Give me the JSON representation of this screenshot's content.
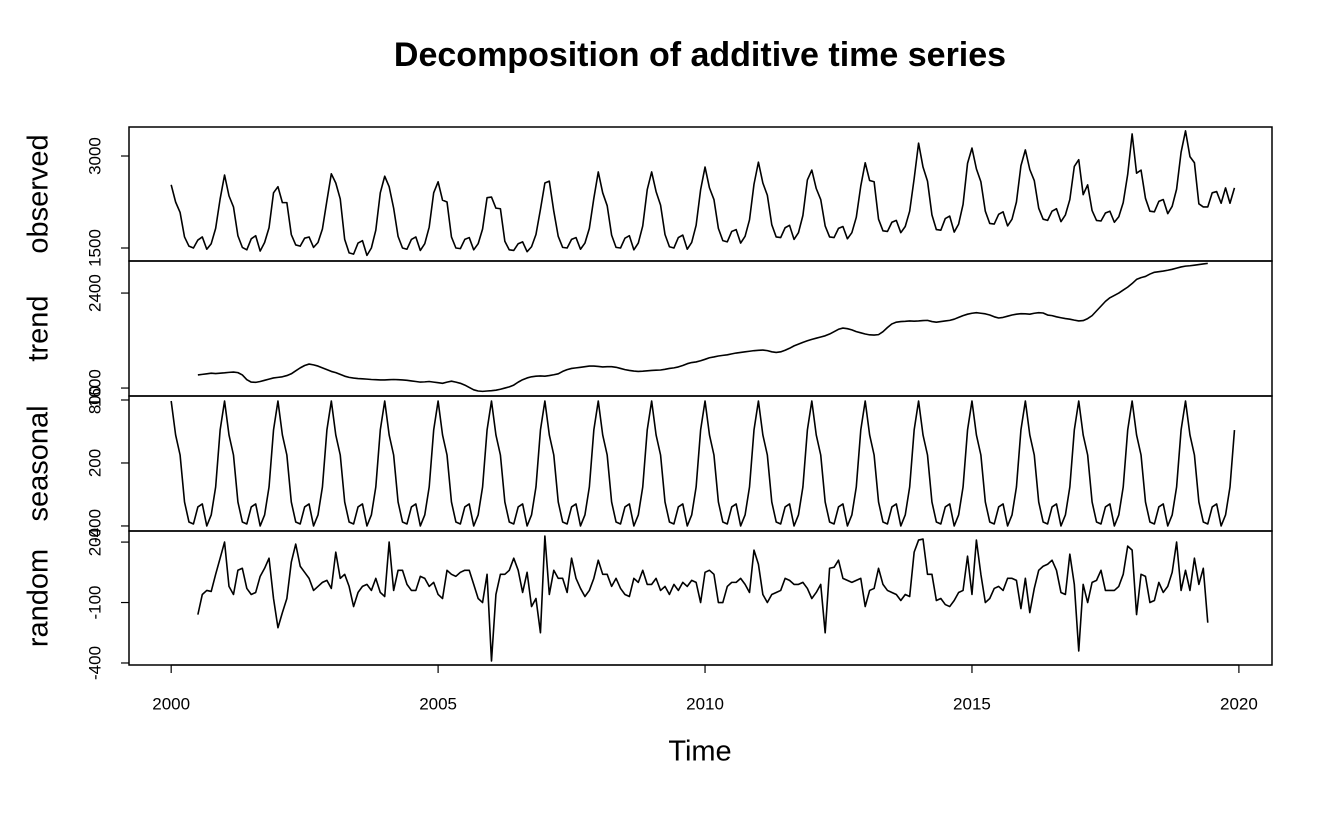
{
  "chart_data": {
    "type": "line",
    "title": "Decomposition of additive time series",
    "xlabel": "Time",
    "xlim": [
      1999.21,
      2020.62
    ],
    "xticks": [
      2000,
      2005,
      2010,
      2015,
      2020
    ],
    "x": [
      2000,
      2000.083,
      2000.167,
      2000.25,
      2000.333,
      2000.417,
      2000.5,
      2000.583,
      2000.667,
      2000.75,
      2000.833,
      2000.917,
      2001,
      2001.083,
      2001.167,
      2001.25,
      2001.333,
      2001.417,
      2001.5,
      2001.583,
      2001.667,
      2001.75,
      2001.833,
      2001.917,
      2002,
      2002.083,
      2002.167,
      2002.25,
      2002.333,
      2002.417,
      2002.5,
      2002.583,
      2002.667,
      2002.75,
      2002.833,
      2002.917,
      2003,
      2003.083,
      2003.167,
      2003.25,
      2003.333,
      2003.417,
      2003.5,
      2003.583,
      2003.667,
      2003.75,
      2003.833,
      2003.917,
      2004,
      2004.083,
      2004.167,
      2004.25,
      2004.333,
      2004.417,
      2004.5,
      2004.583,
      2004.667,
      2004.75,
      2004.833,
      2004.917,
      2005,
      2005.083,
      2005.167,
      2005.25,
      2005.333,
      2005.417,
      2005.5,
      2005.583,
      2005.667,
      2005.75,
      2005.833,
      2005.917,
      2006,
      2006.083,
      2006.167,
      2006.25,
      2006.333,
      2006.417,
      2006.5,
      2006.583,
      2006.667,
      2006.75,
      2006.833,
      2006.917,
      2007,
      2007.083,
      2007.167,
      2007.25,
      2007.333,
      2007.417,
      2007.5,
      2007.583,
      2007.667,
      2007.75,
      2007.833,
      2007.917,
      2008,
      2008.083,
      2008.167,
      2008.25,
      2008.333,
      2008.417,
      2008.5,
      2008.583,
      2008.667,
      2008.75,
      2008.833,
      2008.917,
      2009,
      2009.083,
      2009.167,
      2009.25,
      2009.333,
      2009.417,
      2009.5,
      2009.583,
      2009.667,
      2009.75,
      2009.833,
      2009.917,
      2010,
      2010.083,
      2010.167,
      2010.25,
      2010.333,
      2010.417,
      2010.5,
      2010.583,
      2010.667,
      2010.75,
      2010.833,
      2010.917,
      2011,
      2011.083,
      2011.167,
      2011.25,
      2011.333,
      2011.417,
      2011.5,
      2011.583,
      2011.667,
      2011.75,
      2011.833,
      2011.917,
      2012,
      2012.083,
      2012.167,
      2012.25,
      2012.333,
      2012.417,
      2012.5,
      2012.583,
      2012.667,
      2012.75,
      2012.833,
      2012.917,
      2013,
      2013.083,
      2013.167,
      2013.25,
      2013.333,
      2013.417,
      2013.5,
      2013.583,
      2013.667,
      2013.75,
      2013.833,
      2013.917,
      2014,
      2014.083,
      2014.167,
      2014.25,
      2014.333,
      2014.417,
      2014.5,
      2014.583,
      2014.667,
      2014.75,
      2014.833,
      2014.917,
      2015,
      2015.083,
      2015.167,
      2015.25,
      2015.333,
      2015.417,
      2015.5,
      2015.583,
      2015.667,
      2015.75,
      2015.833,
      2015.917,
      2016,
      2016.083,
      2016.167,
      2016.25,
      2016.333,
      2016.417,
      2016.5,
      2016.583,
      2016.667,
      2016.75,
      2016.833,
      2016.917,
      2017,
      2017.083,
      2017.167,
      2017.25,
      2017.333,
      2017.417,
      2017.5,
      2017.583,
      2017.667,
      2017.75,
      2017.833,
      2017.917,
      2018,
      2018.083,
      2018.167,
      2018.25,
      2018.333,
      2018.417,
      2018.5,
      2018.583,
      2018.667,
      2018.75,
      2018.833,
      2018.917,
      2019,
      2019.083,
      2019.167,
      2019.25,
      2019.333,
      2019.417,
      2019.5,
      2019.583,
      2019.667,
      2019.75,
      2019.833,
      2019.917
    ],
    "panels": [
      {
        "ylabel": "observed",
        "color": "#000000",
        "ylim": [
          1288,
          3473
        ],
        "yticks": [
          1500,
          3000
        ],
        "values": [
          2530,
          2250,
          2080,
          1680,
          1530,
          1500,
          1630,
          1680,
          1480,
          1570,
          1820,
          2300,
          2690,
          2350,
          2170,
          1700,
          1510,
          1470,
          1650,
          1700,
          1450,
          1590,
          1830,
          2400,
          2500,
          2240,
          2240,
          1720,
          1550,
          1530,
          1660,
          1680,
          1510,
          1590,
          1810,
          2270,
          2710,
          2560,
          2300,
          1640,
          1420,
          1400,
          1580,
          1620,
          1380,
          1500,
          1790,
          2400,
          2670,
          2500,
          2150,
          1690,
          1500,
          1480,
          1640,
          1680,
          1460,
          1570,
          1840,
          2400,
          2580,
          2280,
          2250,
          1680,
          1500,
          1490,
          1640,
          1670,
          1470,
          1570,
          1810,
          2320,
          2330,
          2150,
          2140,
          1610,
          1470,
          1460,
          1570,
          1600,
          1440,
          1520,
          1720,
          2130,
          2560,
          2590,
          2100,
          1690,
          1510,
          1500,
          1640,
          1670,
          1480,
          1580,
          1820,
          2310,
          2740,
          2400,
          2190,
          1710,
          1510,
          1500,
          1660,
          1700,
          1470,
          1580,
          1860,
          2450,
          2740,
          2420,
          2200,
          1720,
          1520,
          1500,
          1670,
          1710,
          1480,
          1590,
          1870,
          2450,
          2820,
          2480,
          2290,
          1820,
          1620,
          1600,
          1770,
          1800,
          1580,
          1690,
          1960,
          2540,
          2900,
          2560,
          2360,
          1880,
          1680,
          1670,
          1830,
          1870,
          1640,
          1750,
          2030,
          2610,
          2770,
          2470,
          2290,
          1860,
          1680,
          1670,
          1820,
          1850,
          1650,
          1750,
          2000,
          2510,
          2890,
          2600,
          2580,
          1970,
          1780,
          1770,
          1920,
          1950,
          1750,
          1850,
          2100,
          2630,
          3210,
          2820,
          2590,
          2040,
          1800,
          1790,
          1980,
          2020,
          1760,
          1890,
          2210,
          2880,
          3130,
          2790,
          2580,
          2100,
          1900,
          1890,
          2050,
          2090,
          1860,
          1970,
          2250,
          2840,
          3100,
          2780,
          2600,
          2150,
          1970,
          1950,
          2100,
          2140,
          1930,
          2040,
          2290,
          2830,
          2940,
          2370,
          2530,
          2110,
          1950,
          1940,
          2070,
          2100,
          1920,
          2010,
          2240,
          2700,
          3360,
          2720,
          2770,
          2310,
          2100,
          2090,
          2260,
          2290,
          2060,
          2180,
          2460,
          3060,
          3410,
          2990,
          2890,
          2220,
          2170,
          2170,
          2400,
          2420,
          2230,
          2480,
          2230,
          2480
        ]
      },
      {
        "ylabel": "trend",
        "color": "#000000",
        "ylim": [
          1533,
          2670
        ],
        "yticks": [
          1600,
          2400
        ],
        "values": [
          null,
          null,
          null,
          null,
          null,
          null,
          1710,
          1715,
          1720,
          1725,
          1722,
          1725,
          1728,
          1732,
          1735,
          1730,
          1710,
          1670,
          1650,
          1648,
          1655,
          1665,
          1675,
          1685,
          1690,
          1695,
          1705,
          1720,
          1745,
          1770,
          1790,
          1802,
          1795,
          1785,
          1770,
          1755,
          1740,
          1730,
          1715,
          1700,
          1690,
          1684,
          1680,
          1678,
          1675,
          1672,
          1670,
          1668,
          1668,
          1670,
          1672,
          1670,
          1668,
          1665,
          1660,
          1655,
          1650,
          1652,
          1655,
          1650,
          1645,
          1640,
          1650,
          1658,
          1650,
          1640,
          1625,
          1605,
          1585,
          1575,
          1572,
          1575,
          1578,
          1582,
          1590,
          1600,
          1610,
          1625,
          1650,
          1670,
          1685,
          1695,
          1700,
          1702,
          1700,
          1705,
          1712,
          1720,
          1740,
          1755,
          1765,
          1770,
          1775,
          1780,
          1785,
          1785,
          1782,
          1778,
          1780,
          1780,
          1775,
          1765,
          1755,
          1748,
          1743,
          1740,
          1742,
          1745,
          1748,
          1750,
          1752,
          1758,
          1765,
          1770,
          1778,
          1790,
          1805,
          1815,
          1820,
          1830,
          1842,
          1855,
          1862,
          1870,
          1875,
          1880,
          1888,
          1895,
          1900,
          1905,
          1910,
          1915,
          1918,
          1920,
          1915,
          1905,
          1900,
          1905,
          1918,
          1935,
          1955,
          1970,
          1985,
          1998,
          2010,
          2020,
          2030,
          2040,
          2055,
          2075,
          2095,
          2105,
          2100,
          2090,
          2075,
          2065,
          2055,
          2048,
          2046,
          2050,
          2075,
          2110,
          2140,
          2155,
          2160,
          2162,
          2165,
          2163,
          2165,
          2168,
          2170,
          2160,
          2155,
          2160,
          2165,
          2170,
          2180,
          2195,
          2210,
          2222,
          2230,
          2235,
          2230,
          2225,
          2215,
          2200,
          2190,
          2195,
          2205,
          2215,
          2222,
          2226,
          2225,
          2222,
          2230,
          2235,
          2232,
          2215,
          2210,
          2200,
          2192,
          2185,
          2180,
          2172,
          2165,
          2168,
          2185,
          2210,
          2250,
          2290,
          2330,
          2360,
          2380,
          2400,
          2425,
          2450,
          2480,
          2515,
          2530,
          2540,
          2560,
          2575,
          2580,
          2585,
          2592,
          2600,
          2610,
          2620,
          2627,
          2630,
          2635,
          2640,
          2645,
          2650,
          null,
          null,
          null,
          null,
          null,
          null
        ]
      },
      {
        "ylabel": "seasonal",
        "color": "#000000",
        "ylim": [
          -448,
          838
        ],
        "yticks": [
          -400,
          200,
          800
        ],
        "values": [
          790,
          467,
          276,
          -171,
          -362,
          -381,
          -219,
          -190,
          -400,
          -295,
          -29,
          514,
          790,
          467,
          276,
          -171,
          -362,
          -381,
          -219,
          -190,
          -400,
          -295,
          -29,
          514,
          790,
          467,
          276,
          -171,
          -362,
          -381,
          -219,
          -190,
          -400,
          -295,
          -29,
          514,
          790,
          467,
          276,
          -171,
          -362,
          -381,
          -219,
          -190,
          -400,
          -295,
          -29,
          514,
          790,
          467,
          276,
          -171,
          -362,
          -381,
          -219,
          -190,
          -400,
          -295,
          -29,
          514,
          790,
          467,
          276,
          -171,
          -362,
          -381,
          -219,
          -190,
          -400,
          -295,
          -29,
          514,
          790,
          467,
          276,
          -171,
          -362,
          -381,
          -219,
          -190,
          -400,
          -295,
          -29,
          514,
          790,
          467,
          276,
          -171,
          -362,
          -381,
          -219,
          -190,
          -400,
          -295,
          -29,
          514,
          790,
          467,
          276,
          -171,
          -362,
          -381,
          -219,
          -190,
          -400,
          -295,
          -29,
          514,
          790,
          467,
          276,
          -171,
          -362,
          -381,
          -219,
          -190,
          -400,
          -295,
          -29,
          514,
          790,
          467,
          276,
          -171,
          -362,
          -381,
          -219,
          -190,
          -400,
          -295,
          -29,
          514,
          790,
          467,
          276,
          -171,
          -362,
          -381,
          -219,
          -190,
          -400,
          -295,
          -29,
          514,
          790,
          467,
          276,
          -171,
          -362,
          -381,
          -219,
          -190,
          -400,
          -295,
          -29,
          514,
          790,
          467,
          276,
          -171,
          -362,
          -381,
          -219,
          -190,
          -400,
          -295,
          -29,
          514,
          790,
          467,
          276,
          -171,
          -362,
          -381,
          -219,
          -190,
          -400,
          -295,
          -29,
          514,
          790,
          467,
          276,
          -171,
          -362,
          -381,
          -219,
          -190,
          -400,
          -295,
          -29,
          514,
          790,
          467,
          276,
          -171,
          -362,
          -381,
          -219,
          -190,
          -400,
          -295,
          -29,
          514,
          790,
          467,
          276,
          -171,
          -362,
          -381,
          -219,
          -190,
          -400,
          -295,
          -29,
          514,
          790,
          467,
          276,
          -171,
          -362,
          -381,
          -219,
          -190,
          -400,
          -295,
          -29,
          514,
          790,
          467,
          276,
          -171,
          -362,
          -381,
          -219,
          -190,
          -400,
          -295,
          -29,
          514
        ]
      },
      {
        "ylabel": "random",
        "color": "#000000",
        "ylim": [
          -410,
          255
        ],
        "yticks": [
          -400,
          -100,
          200
        ],
        "values": [
          null,
          null,
          null,
          null,
          null,
          null,
          -160,
          -60,
          -40,
          -45,
          40,
          120,
          200,
          -20,
          -60,
          60,
          70,
          -30,
          -60,
          -50,
          30,
          70,
          120,
          -80,
          -225,
          -150,
          -80,
          100,
          190,
          80,
          50,
          20,
          -40,
          -20,
          0,
          10,
          -30,
          150,
          20,
          40,
          -20,
          -120,
          -50,
          -20,
          -10,
          -40,
          20,
          -50,
          -70,
          200,
          -40,
          60,
          60,
          -10,
          -40,
          -40,
          30,
          20,
          -20,
          0,
          -60,
          -80,
          60,
          40,
          30,
          50,
          60,
          60,
          -10,
          -80,
          -100,
          40,
          -390,
          -60,
          40,
          40,
          60,
          120,
          60,
          -50,
          50,
          -120,
          -80,
          -250,
          230,
          -60,
          60,
          20,
          20,
          -50,
          120,
          20,
          -30,
          -70,
          -40,
          20,
          110,
          40,
          40,
          -20,
          20,
          -30,
          -60,
          -70,
          20,
          0,
          60,
          -10,
          -10,
          20,
          -40,
          -20,
          -60,
          -10,
          -40,
          0,
          -20,
          10,
          0,
          -100,
          50,
          60,
          40,
          -100,
          -100,
          -20,
          0,
          0,
          20,
          -10,
          -50,
          160,
          90,
          -60,
          -100,
          -60,
          -50,
          -40,
          20,
          10,
          -10,
          -10,
          0,
          -30,
          -80,
          -50,
          -10,
          -250,
          70,
          75,
          110,
          20,
          10,
          0,
          10,
          20,
          -120,
          -40,
          -30,
          70,
          -10,
          -40,
          -50,
          -60,
          -90,
          -60,
          -70,
          150,
          210,
          215,
          40,
          40,
          -90,
          -80,
          -110,
          -120,
          -90,
          -50,
          -40,
          130,
          -60,
          210,
          40,
          -100,
          -80,
          -30,
          -20,
          -40,
          20,
          20,
          10,
          -130,
          20,
          -150,
          -30,
          60,
          80,
          90,
          110,
          60,
          -50,
          -60,
          140,
          -10,
          -340,
          -10,
          -100,
          0,
          10,
          60,
          -40,
          -40,
          -40,
          -20,
          40,
          180,
          160,
          -160,
          40,
          30,
          -100,
          -90,
          0,
          -50,
          -20,
          50,
          200,
          -40,
          60,
          -40,
          120,
          -10,
          70,
          -200,
          null,
          null,
          null,
          null,
          null,
          null
        ]
      }
    ]
  }
}
